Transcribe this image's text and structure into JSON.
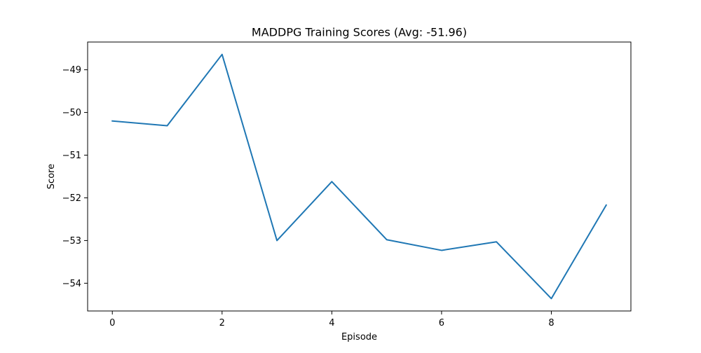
{
  "chart_data": {
    "type": "line",
    "title": "MADDPG Training Scores (Avg: -51.96)",
    "xlabel": "Episode",
    "ylabel": "Score",
    "x": [
      0,
      1,
      2,
      3,
      4,
      5,
      6,
      7,
      8,
      9
    ],
    "series": [
      {
        "values": [
          -50.2,
          -50.31,
          -48.64,
          -53.0,
          -51.62,
          -52.98,
          -53.23,
          -53.03,
          -54.36,
          -52.17
        ],
        "color": "#1f77b4"
      }
    ],
    "xlim": [
      -0.45,
      9.45
    ],
    "ylim": [
      -54.65,
      -48.35
    ],
    "xticks": [
      0,
      2,
      4,
      6,
      8
    ],
    "xtick_labels": [
      "0",
      "2",
      "4",
      "6",
      "8"
    ],
    "yticks": [
      -54,
      -53,
      -52,
      -51,
      -50,
      -49
    ],
    "ytick_labels": [
      "−54",
      "−53",
      "−52",
      "−51",
      "−50",
      "−49"
    ],
    "grid": false,
    "legend": "none"
  }
}
